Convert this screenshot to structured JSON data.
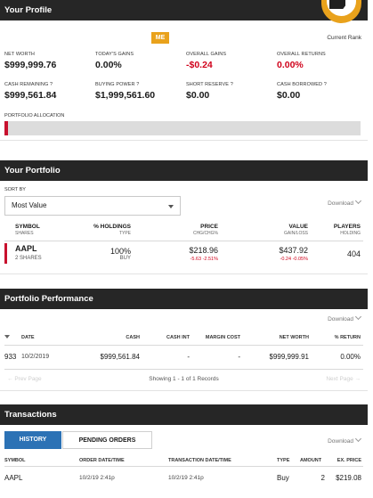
{
  "profile": {
    "title": "Your Profile",
    "badge": "ME",
    "rank_label": "Current Rank",
    "stats": [
      {
        "label": "Net Worth",
        "value": "$999,999.76",
        "neg": false
      },
      {
        "label": "Today's Gains",
        "value": "0.00%",
        "neg": false
      },
      {
        "label": "Overall Gains",
        "value": "-$0.24",
        "neg": true
      },
      {
        "label": "Overall Returns",
        "value": "0.00%",
        "neg": true
      },
      {
        "label": "Cash Remaining ?",
        "value": "$999,561.84",
        "neg": false
      },
      {
        "label": "Buying Power ?",
        "value": "$1,999,561.60",
        "neg": false
      },
      {
        "label": "Short Reserve ?",
        "value": "$0.00",
        "neg": false
      },
      {
        "label": "Cash Borrowed ?",
        "value": "$0.00",
        "neg": false
      }
    ],
    "allocation_label": "Portfolio Allocation",
    "allocation_stocks_fraction": 0.01,
    "colors": {
      "accent": "#e9a21c",
      "header": "#262626",
      "negative": "#d0021b",
      "stock": "#c8102e",
      "primary": "#2c72b5"
    }
  },
  "portfolio": {
    "title": "Your Portfolio",
    "sort_label": "Sort By",
    "sort_value": "Most Value",
    "download": "Download",
    "headers": {
      "symbol": "Symbol",
      "symbol_sub": "Shares",
      "holdings": "% Holdings",
      "holdings_sub": "Type",
      "price": "Price",
      "price_sub": "Chg/Chg%",
      "value": "Value",
      "value_sub": "Gain/Loss",
      "players": "Players",
      "players_sub": "Holding"
    },
    "rows": [
      {
        "symbol": "AAPL",
        "shares": "2 Shares",
        "holdings": "100%",
        "type": "Buy",
        "price": "$218.96",
        "price_change": "-5.63  -2.51%",
        "value": "$437.92",
        "gain_loss": "-0.24  -0.05%",
        "players": "404"
      }
    ]
  },
  "performance": {
    "title": "Portfolio Performance",
    "download": "Download",
    "headers": {
      "date": "Date",
      "cash": "Cash",
      "cash_int": "Cash Int",
      "margin_cost": "Margin Cost",
      "net_worth": "Net Worth",
      "return": "% Return"
    },
    "rows": [
      {
        "rank": "933",
        "date": "10/2/2019",
        "cash": "$999,561.84",
        "cash_int": "-",
        "margin_cost": "-",
        "net_worth": "$999,999.91",
        "return": "0.00%"
      }
    ],
    "prev": "Prev Page",
    "next": "Next Page",
    "showing": "Showing 1 - 1 of 1 Records"
  },
  "transactions": {
    "title": "Transactions",
    "tabs": [
      "History",
      "Pending Orders"
    ],
    "download": "Download",
    "headers": {
      "symbol": "Symbol",
      "order_date": "Order Date/Time",
      "transaction_date": "Transaction Date/Time",
      "type": "Type",
      "amount": "Amount",
      "price": "Ex. Price"
    },
    "rows": [
      {
        "symbol": "AAPL",
        "order_date": "10/2/19 2:41p",
        "transaction_date": "10/2/19 2:41p",
        "type": "Buy",
        "amount": "2",
        "price": "$219.08"
      }
    ]
  }
}
